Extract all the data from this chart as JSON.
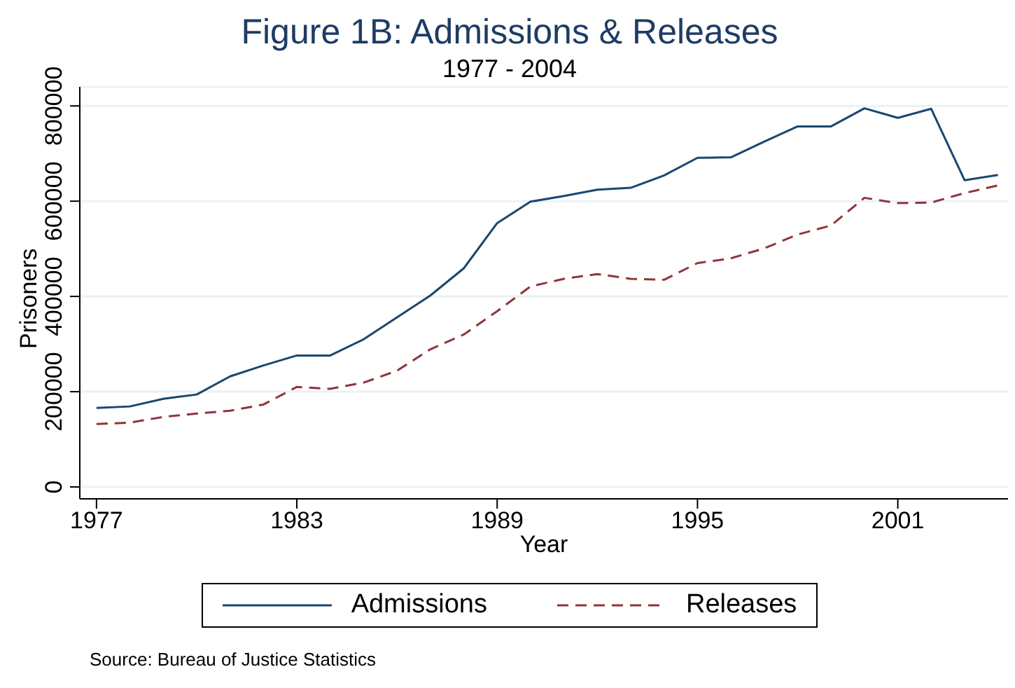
{
  "chart_data": {
    "type": "line",
    "title": "Figure 1B: Admissions & Releases",
    "subtitle": "1977 - 2004",
    "xlabel": "Year",
    "ylabel": "Prisoners",
    "annotations": [
      "Source: Bureau of Justice Statistics"
    ],
    "x": [
      1977,
      1978,
      1979,
      1980,
      1981,
      1982,
      1983,
      1984,
      1985,
      1986,
      1987,
      1988,
      1989,
      1990,
      1991,
      1992,
      1993,
      1994,
      1995,
      1996,
      1997,
      1998,
      1999,
      2000,
      2001,
      2002,
      2003,
      2004
    ],
    "series": [
      {
        "name": "Admissions",
        "color": "#1a476f",
        "line_style": "solid",
        "values": [
          166000,
          169000,
          185000,
          194000,
          232000,
          255000,
          276000,
          276000,
          310000,
          356000,
          402000,
          459000,
          554000,
          599000,
          611000,
          624000,
          628000,
          654000,
          691000,
          692000,
          725000,
          757000,
          757000,
          795000,
          775000,
          794000,
          644000,
          655000
        ]
      },
      {
        "name": "Releases",
        "color": "#90353b",
        "line_style": "dashed",
        "values": [
          132000,
          135000,
          147000,
          154000,
          160000,
          173000,
          210000,
          206000,
          219000,
          244000,
          289000,
          320000,
          369000,
          421000,
          437000,
          447000,
          437000,
          435000,
          470000,
          480000,
          501000,
          530000,
          549000,
          607000,
          596000,
          597000,
          617000,
          633000
        ]
      }
    ],
    "xlim": [
      1976.5,
      2004.3
    ],
    "xticks": [
      1977,
      1983,
      1989,
      1995,
      2001
    ],
    "ylim": [
      -25000,
      840000
    ],
    "yticks": [
      0,
      200000,
      400000,
      600000,
      800000
    ],
    "grid": "y",
    "legend": "bottom",
    "marker": "none"
  }
}
